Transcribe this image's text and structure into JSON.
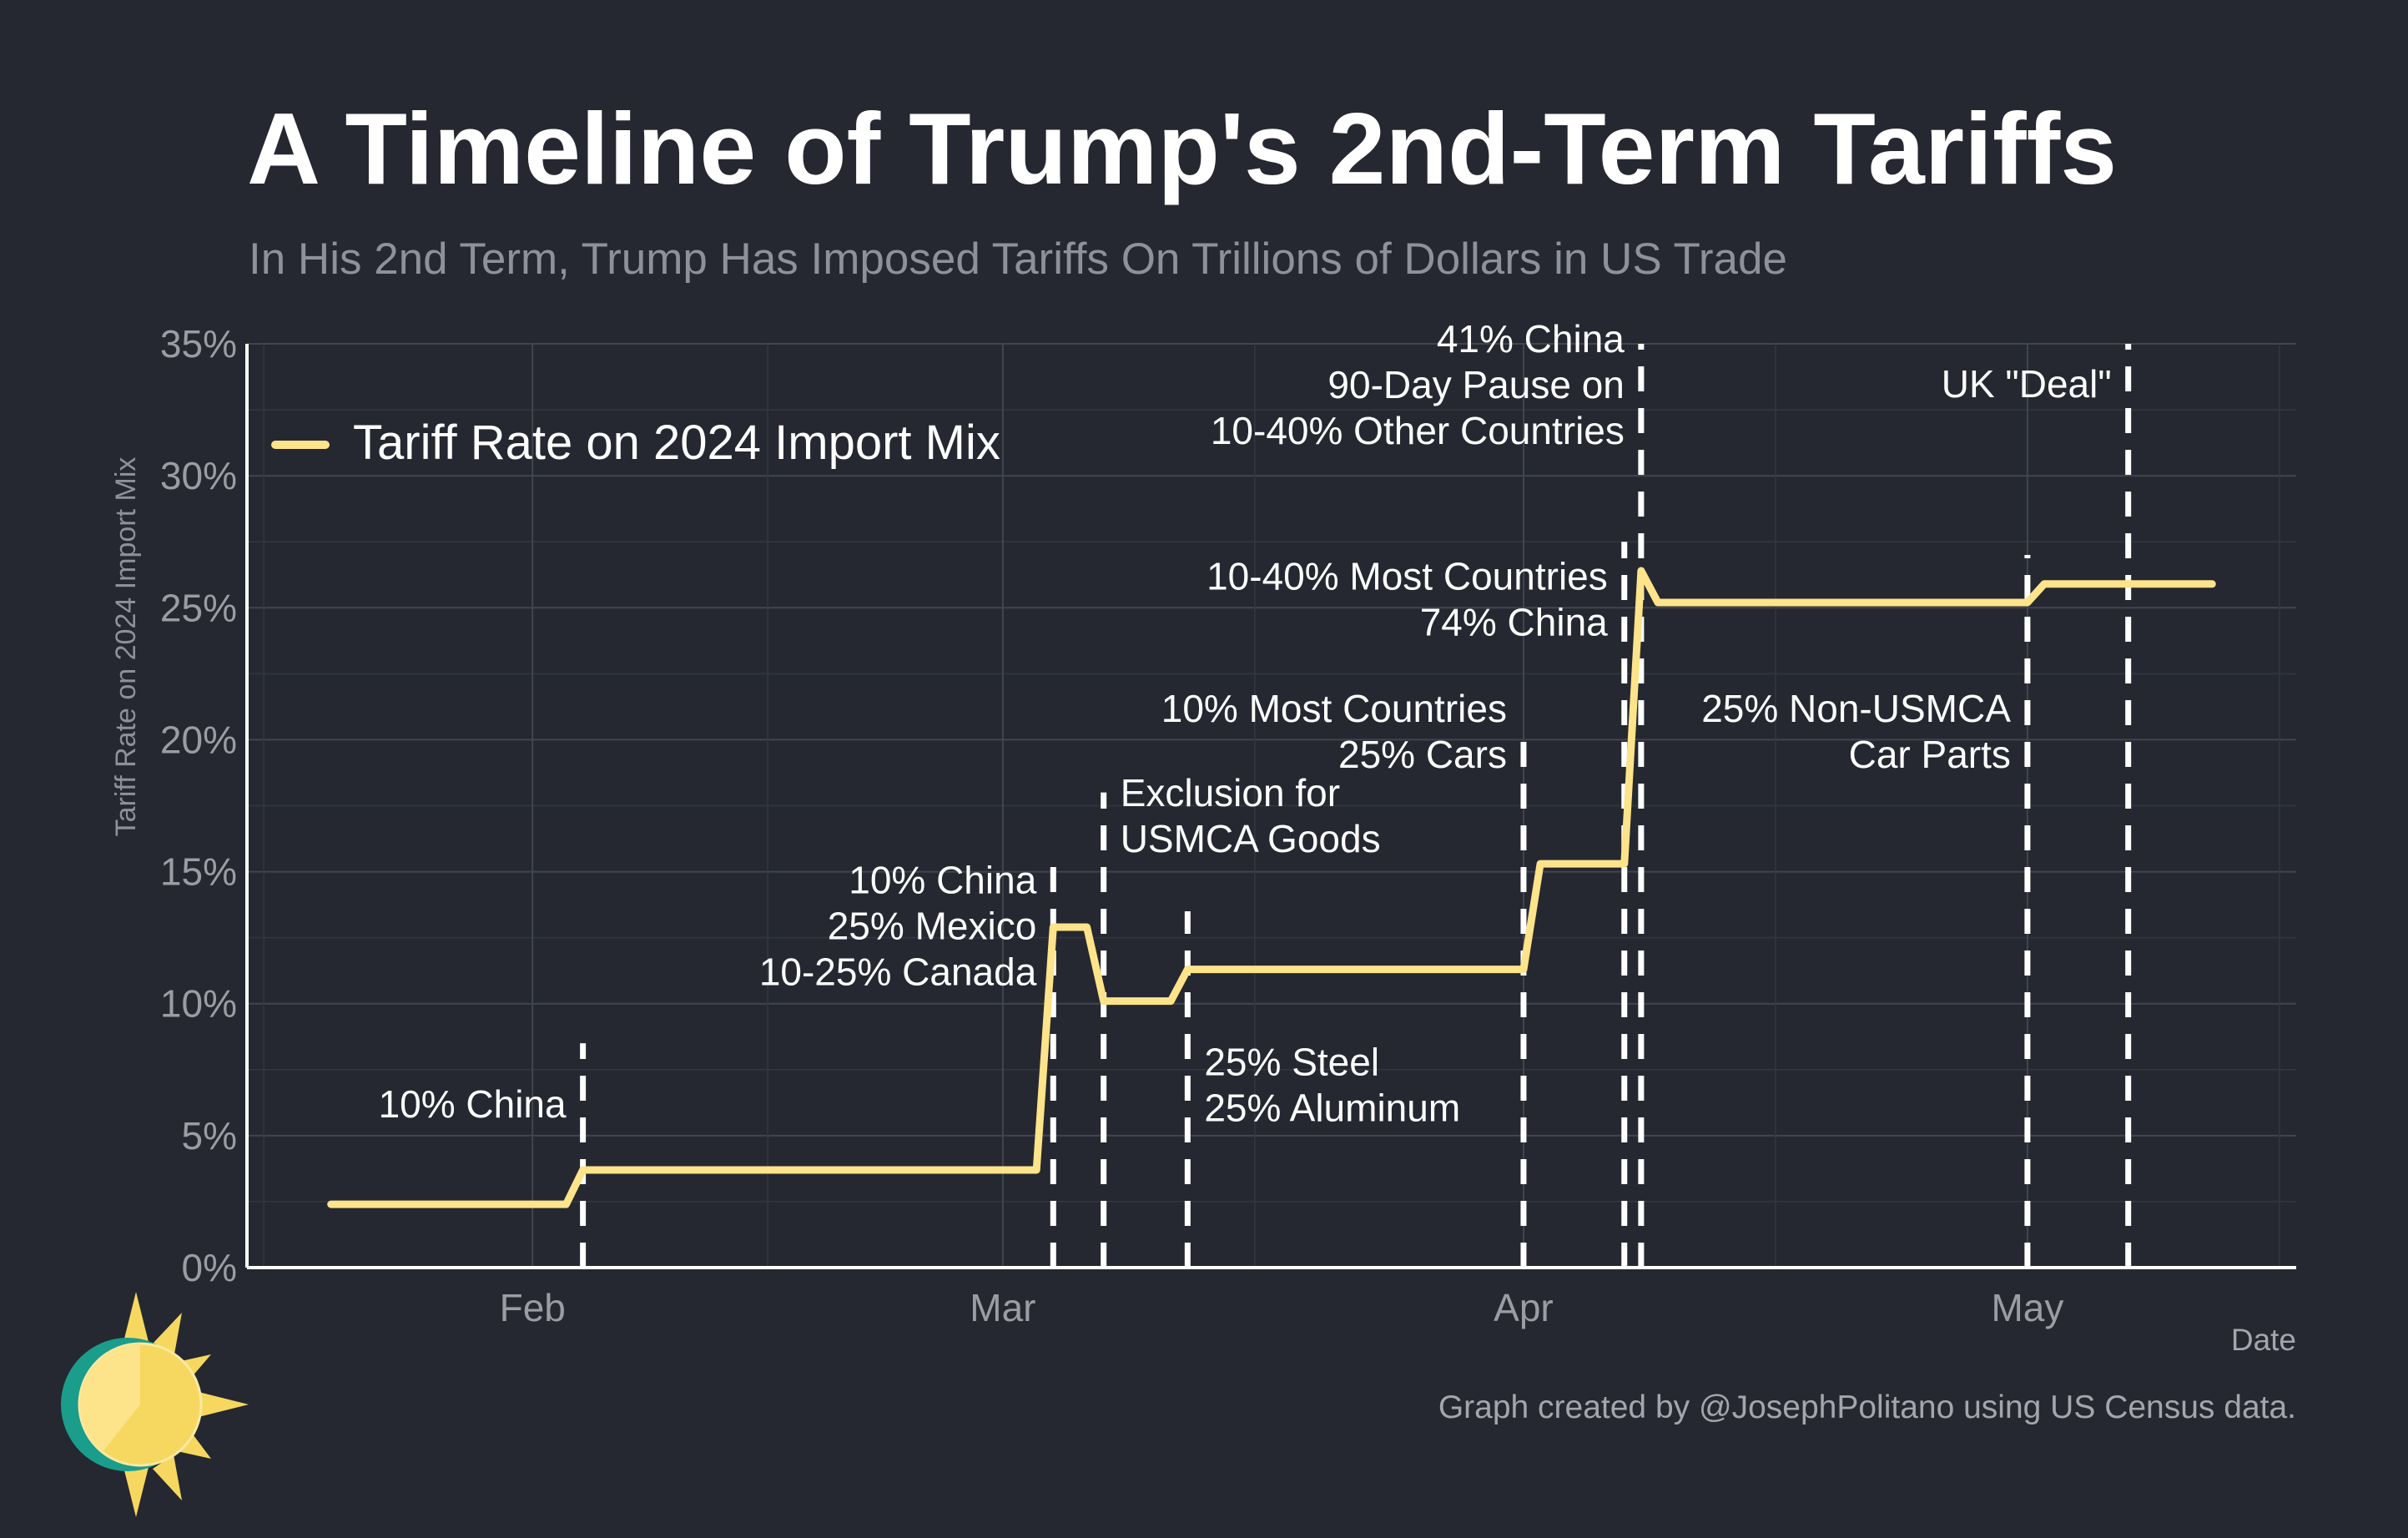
{
  "title": "A Timeline of Trump's 2nd-Term Tariffs",
  "subtitle": "In His 2nd Term, Trump Has Imposed Tariffs On Trillions of Dollars in US Trade",
  "credit": "Graph created by @JosephPolitano using US Census data.",
  "colors": {
    "background": "#252830",
    "line": "#fde38a",
    "grid": "#3f434c",
    "axis": "#ffffff",
    "tick_text": "#9a9da4",
    "annotation_text": "#ffffff"
  },
  "chart_data": {
    "type": "line",
    "title": "A Timeline of Trump's 2nd-Term Tariffs",
    "xlabel": "Date",
    "ylabel": "Tariff Rate on 2024 Import Mix",
    "ylim": [
      0,
      35
    ],
    "xlim": [
      "2025-01-15",
      "2025-05-17"
    ],
    "y_ticks": [
      0,
      5,
      10,
      15,
      20,
      25,
      30,
      35
    ],
    "y_tick_labels": [
      "0%",
      "5%",
      "10%",
      "15%",
      "20%",
      "25%",
      "30%",
      "35%"
    ],
    "x_ticks": [
      {
        "date": "2025-02-01",
        "label": "Feb"
      },
      {
        "date": "2025-03-01",
        "label": "Mar"
      },
      {
        "date": "2025-04-01",
        "label": "Apr"
      },
      {
        "date": "2025-05-01",
        "label": "May"
      }
    ],
    "grid": true,
    "legend_position": "top-left",
    "series": [
      {
        "name": "Tariff Rate on 2024 Import Mix",
        "points": [
          {
            "x": "2025-01-20",
            "y": 2.4
          },
          {
            "x": "2025-02-03",
            "y": 2.4
          },
          {
            "x": "2025-02-04",
            "y": 3.7
          },
          {
            "x": "2025-03-03",
            "y": 3.7
          },
          {
            "x": "2025-03-04",
            "y": 12.9
          },
          {
            "x": "2025-03-06",
            "y": 12.9
          },
          {
            "x": "2025-03-07",
            "y": 10.1
          },
          {
            "x": "2025-03-11",
            "y": 10.1
          },
          {
            "x": "2025-03-12",
            "y": 11.3
          },
          {
            "x": "2025-04-01",
            "y": 11.3
          },
          {
            "x": "2025-04-02",
            "y": 15.3
          },
          {
            "x": "2025-04-07",
            "y": 15.3
          },
          {
            "x": "2025-04-08",
            "y": 26.4
          },
          {
            "x": "2025-04-09",
            "y": 25.2
          },
          {
            "x": "2025-05-01",
            "y": 25.2
          },
          {
            "x": "2025-05-02",
            "y": 25.9
          },
          {
            "x": "2025-05-06",
            "y": 25.9
          },
          {
            "x": "2025-05-07",
            "y": 25.9
          },
          {
            "x": "2025-05-12",
            "y": 25.9
          }
        ]
      }
    ],
    "events": [
      {
        "date": "2025-02-04",
        "y_top": 8.5,
        "lines": [
          "10% China"
        ],
        "label_y": 6.0,
        "align": "right"
      },
      {
        "date": "2025-03-04",
        "y_top": 15.5,
        "lines": [
          "10% China",
          "25% Mexico",
          "10-25% Canada"
        ],
        "label_y": 14.5,
        "align": "right"
      },
      {
        "date": "2025-03-07",
        "y_top": 18.0,
        "lines": [
          "Exclusion for",
          "USMCA Goods"
        ],
        "label_y": 17.8,
        "align": "left"
      },
      {
        "date": "2025-03-12",
        "y_top": 13.5,
        "lines": [
          "25% Steel",
          "25% Aluminum"
        ],
        "label_y": 7.6,
        "align": "left"
      },
      {
        "date": "2025-04-01",
        "y_top": 20.5,
        "lines": [
          "10% Most Countries",
          "25% Cars"
        ],
        "label_y": 21.0,
        "align": "right"
      },
      {
        "date": "2025-04-07",
        "y_top": 27.5,
        "lines": [
          "10-40% Most Countries",
          "74% China"
        ],
        "label_y": 26.0,
        "align": "right"
      },
      {
        "date": "2025-04-08",
        "y_top": 35.0,
        "lines": [
          "41% China",
          "90-Day Pause on",
          "10-40% Other Countries"
        ],
        "label_y": 35.0,
        "align": "right"
      },
      {
        "date": "2025-05-01",
        "y_top": 27.0,
        "lines": [
          "25% Non-USMCA",
          "Car Parts"
        ],
        "label_y": 21.0,
        "align": "right"
      },
      {
        "date": "2025-05-07",
        "y_top": 35.0,
        "lines": [
          "UK \"Deal\""
        ],
        "label_y": 33.3,
        "align": "right"
      }
    ]
  }
}
